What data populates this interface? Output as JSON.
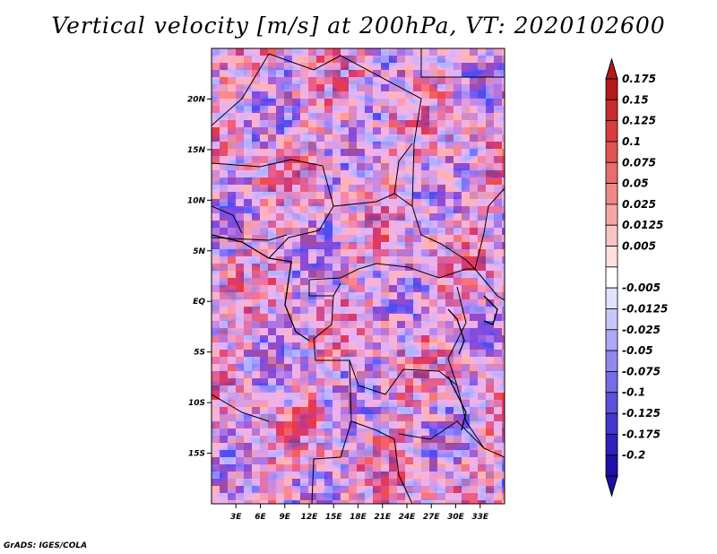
{
  "chart_data": {
    "type": "heatmap",
    "title": "Vertical velocity [m/s] at 200hPa, VT: 2020102600",
    "variable": "vertical velocity",
    "units": "m/s",
    "level": "200hPa",
    "valid_time": "2020102600",
    "x_axis": {
      "range_deg_east": [
        0,
        36
      ],
      "ticks": [
        {
          "value": 3,
          "label": "3E"
        },
        {
          "value": 6,
          "label": "6E"
        },
        {
          "value": 9,
          "label": "9E"
        },
        {
          "value": 12,
          "label": "12E"
        },
        {
          "value": 15,
          "label": "15E"
        },
        {
          "value": 18,
          "label": "18E"
        },
        {
          "value": 21,
          "label": "21E"
        },
        {
          "value": 24,
          "label": "24E"
        },
        {
          "value": 27,
          "label": "27E"
        },
        {
          "value": 30,
          "label": "30E"
        },
        {
          "value": 33,
          "label": "33E"
        }
      ]
    },
    "y_axis": {
      "range_deg_north": [
        -20,
        25
      ],
      "ticks": [
        {
          "value": 20,
          "label": "20N"
        },
        {
          "value": 15,
          "label": "15N"
        },
        {
          "value": 10,
          "label": "10N"
        },
        {
          "value": 5,
          "label": "5N"
        },
        {
          "value": 0,
          "label": "EQ"
        },
        {
          "value": -5,
          "label": "5S"
        },
        {
          "value": -10,
          "label": "10S"
        },
        {
          "value": -15,
          "label": "15S"
        }
      ]
    },
    "colorbar": {
      "orientation": "vertical",
      "position": "right",
      "levels": [
        {
          "label": "0.175",
          "color": "#b21a1a"
        },
        {
          "label": "0.15",
          "color": "#c72b2b"
        },
        {
          "label": "0.125",
          "color": "#d63d3d"
        },
        {
          "label": "0.1",
          "color": "#e05454"
        },
        {
          "label": "0.075",
          "color": "#e86d6d"
        },
        {
          "label": "0.05",
          "color": "#f08888"
        },
        {
          "label": "0.025",
          "color": "#f6a6a6"
        },
        {
          "label": "0.0125",
          "color": "#fac4c4"
        },
        {
          "label": "0.005",
          "color": "#fde0e0"
        },
        {
          "label": "",
          "color": "#ffffff"
        },
        {
          "label": "-0.005",
          "color": "#e2e2fc"
        },
        {
          "label": "-0.0125",
          "color": "#c8c6fa"
        },
        {
          "label": "-0.025",
          "color": "#aca8f6"
        },
        {
          "label": "-0.05",
          "color": "#8f89ef"
        },
        {
          "label": "-0.075",
          "color": "#746de6"
        },
        {
          "label": "-0.1",
          "color": "#5a52da"
        },
        {
          "label": "-0.125",
          "color": "#4238cc"
        },
        {
          "label": "-0.175",
          "color": "#2d20bb"
        },
        {
          "label": "-0.2",
          "color": "#1e0fa8"
        }
      ],
      "top_extension_color": "#b21a1a",
      "bottom_extension_color": "#1e0fa8"
    },
    "field_description": "Mixed small-scale positive (red) and negative (blue) vertical velocity over Central Africa; strongest ascent near 3-6N around 12-27E and near EQ at 27-29E"
  },
  "footer": {
    "credit": "GrADS: IGES/COLA"
  }
}
